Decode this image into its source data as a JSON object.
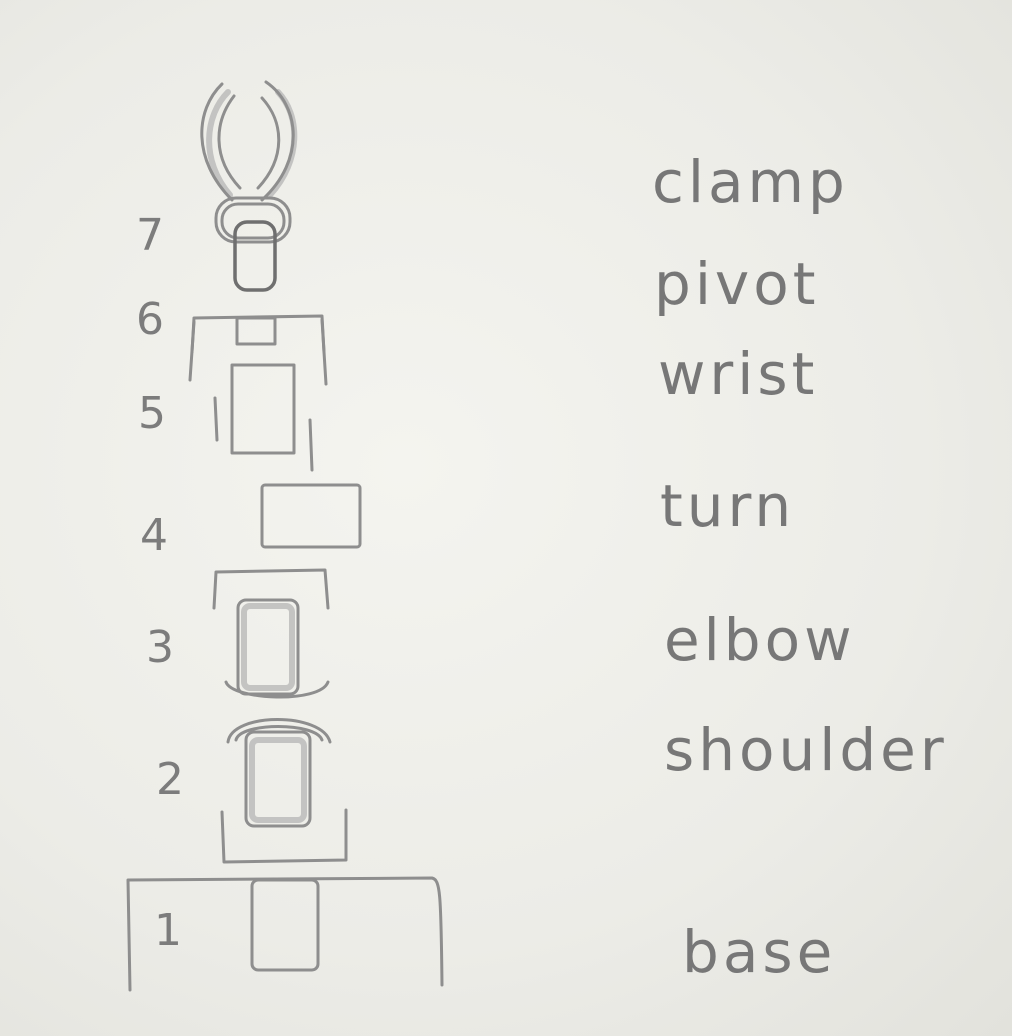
{
  "segments": [
    {
      "number": "7",
      "label": "clamp"
    },
    {
      "number": "6",
      "label": "pivot"
    },
    {
      "number": "5",
      "label": "wrist"
    },
    {
      "number": "4",
      "label": "turn"
    },
    {
      "number": "3",
      "label": "elbow"
    },
    {
      "number": "2",
      "label": "shoulder"
    },
    {
      "number": "1",
      "label": "base"
    }
  ]
}
